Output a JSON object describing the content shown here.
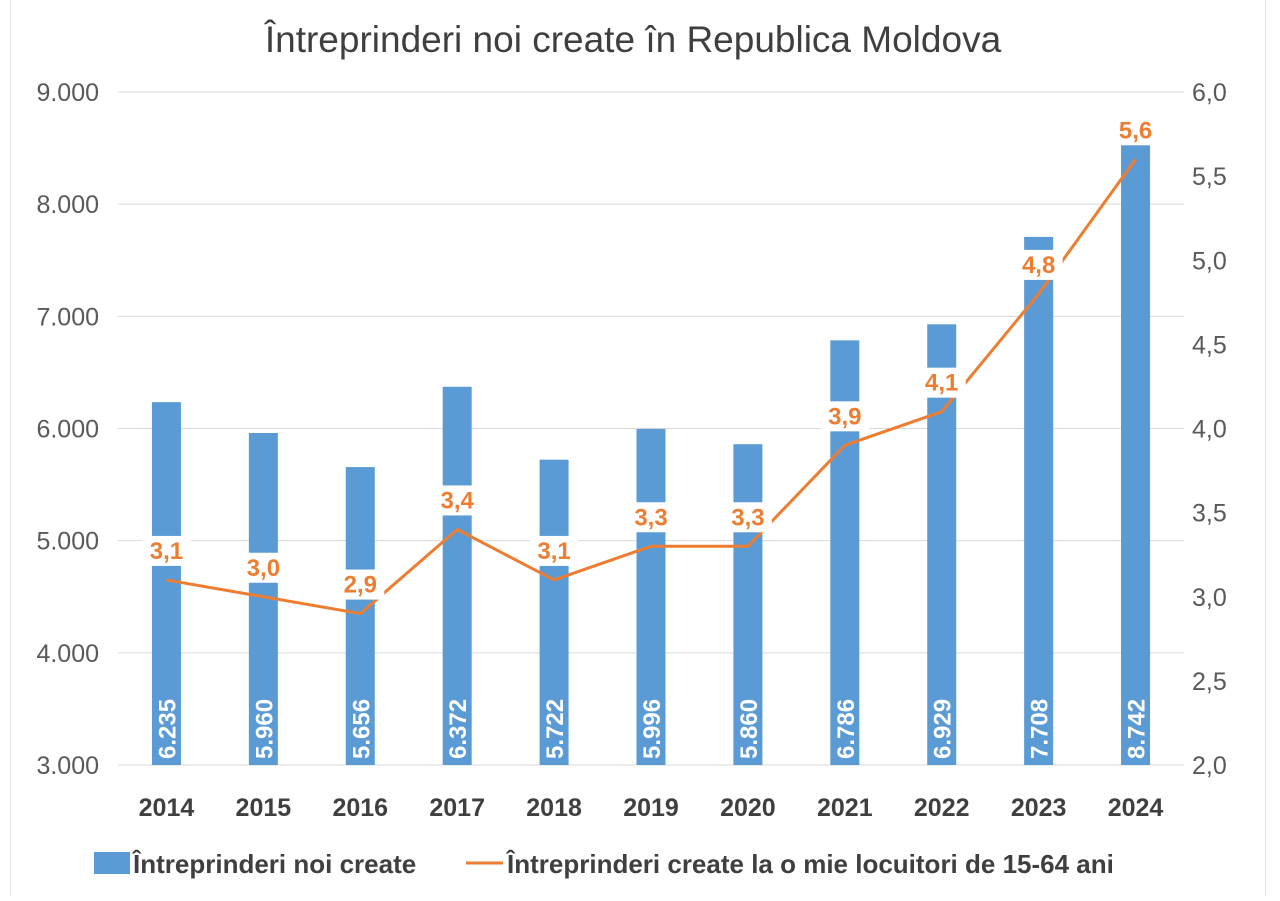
{
  "chart_data": {
    "type": "bar",
    "title": "Întreprinderi noi create în Republica Moldova",
    "categories": [
      "2014",
      "2015",
      "2016",
      "2017",
      "2018",
      "2019",
      "2020",
      "2021",
      "2022",
      "2023",
      "2024"
    ],
    "series": [
      {
        "name": "Întreprinderi noi create",
        "type": "bar",
        "axis": "left",
        "color": "#5b9bd5",
        "values": [
          6235,
          5960,
          5656,
          6372,
          5722,
          5996,
          5860,
          6786,
          6929,
          7708,
          8742
        ],
        "labels": [
          "6.235",
          "5.960",
          "5.656",
          "6.372",
          "5.722",
          "5.996",
          "5.860",
          "6.786",
          "6.929",
          "7.708",
          "8.742"
        ]
      },
      {
        "name": "Întreprinderi create la o mie locuitori de 15-64 ani",
        "type": "line",
        "axis": "right",
        "color": "#ed7d31",
        "values": [
          3.1,
          3.0,
          2.9,
          3.4,
          3.1,
          3.3,
          3.3,
          3.9,
          4.1,
          4.8,
          5.6
        ],
        "labels": [
          "3,1",
          "3,0",
          "2,9",
          "3,4",
          "3,1",
          "3,3",
          "3,3",
          "3,9",
          "4,1",
          "4,8",
          "5,6"
        ]
      }
    ],
    "y_left": {
      "min": 3000,
      "max": 9000,
      "ticks": [
        3000,
        4000,
        5000,
        6000,
        7000,
        8000,
        9000
      ],
      "tick_labels": [
        "3.000",
        "4.000",
        "5.000",
        "6.000",
        "7.000",
        "8.000",
        "9.000"
      ]
    },
    "y_right": {
      "min": 2.0,
      "max": 6.0,
      "ticks": [
        2.0,
        2.5,
        3.0,
        3.5,
        4.0,
        4.5,
        5.0,
        5.5,
        6.0
      ],
      "tick_labels": [
        "2,0",
        "2,5",
        "3,0",
        "3,5",
        "4,0",
        "4,5",
        "5,0",
        "5,5",
        "6,0"
      ]
    },
    "grid": true,
    "legend": "bottom",
    "xlabel": "",
    "ylabel": ""
  }
}
